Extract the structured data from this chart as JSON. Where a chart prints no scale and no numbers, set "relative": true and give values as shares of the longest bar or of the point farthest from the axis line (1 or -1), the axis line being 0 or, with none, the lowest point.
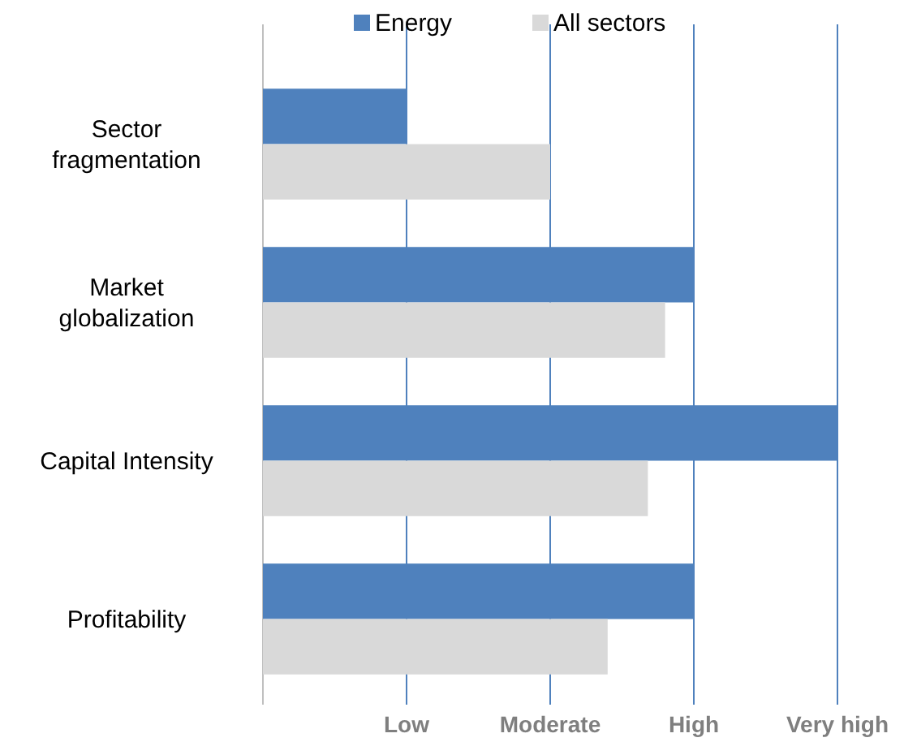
{
  "chart_data": {
    "type": "bar",
    "orientation": "horizontal",
    "relative": true,
    "categories": [
      "Sector\nfragmentation",
      "Market\nglobalization",
      "Capital Intensity",
      "Profitability"
    ],
    "series": [
      {
        "name": "Energy",
        "color": "#4f81bd",
        "values": [
          0.25,
          0.75,
          1,
          0.75
        ]
      },
      {
        "name": "All sectors",
        "color": "#d9d9d9",
        "values": [
          0.5,
          0.7,
          0.67,
          0.6
        ]
      }
    ],
    "ref_lines": [
      {
        "axis": "x",
        "value": 0.25,
        "label": "Low",
        "color": "#4f81bd"
      },
      {
        "axis": "x",
        "value": 0.5,
        "label": "Moderate",
        "color": "#4f81bd"
      },
      {
        "axis": "x",
        "value": 0.75,
        "label": "High",
        "color": "#4f81bd"
      },
      {
        "axis": "x",
        "value": 1,
        "label": "Very high",
        "color": "#4f81bd"
      }
    ],
    "legend": "top"
  }
}
